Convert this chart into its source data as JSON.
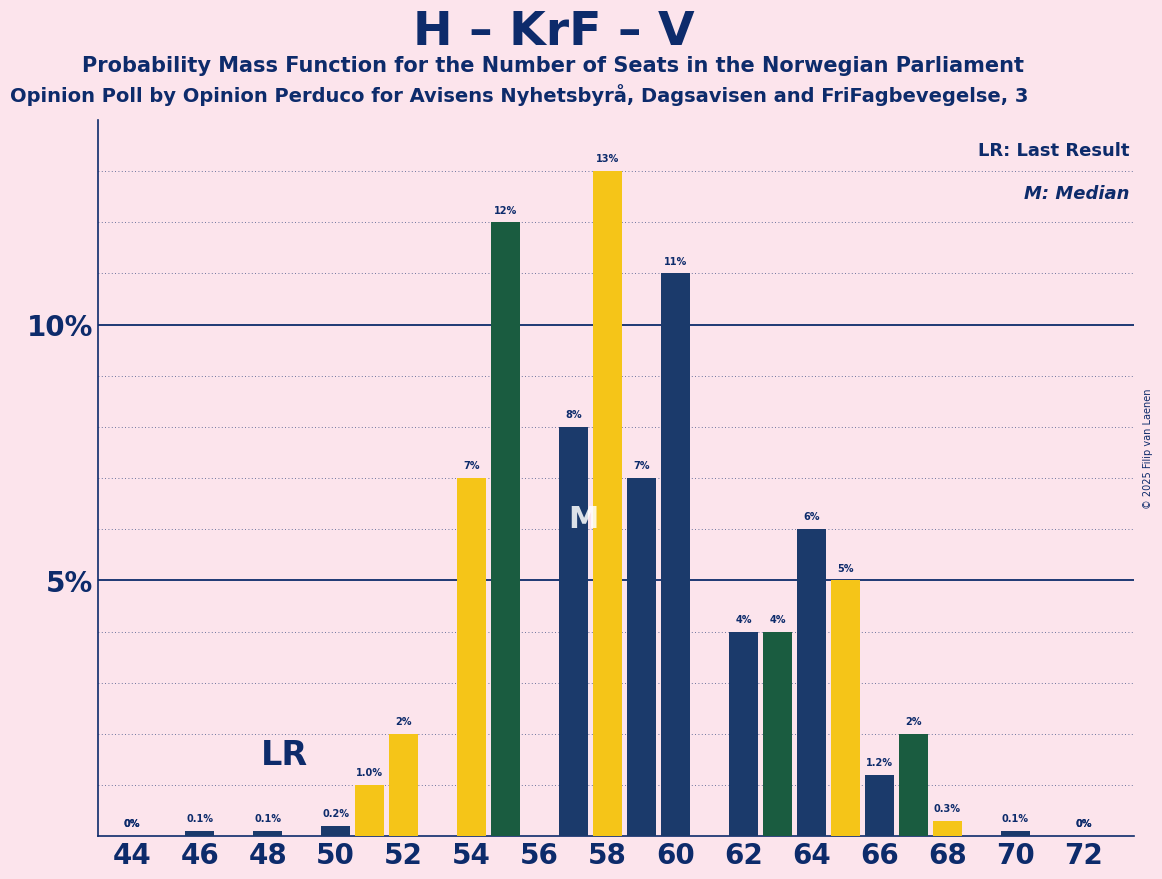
{
  "title": "H – KrF – V",
  "subtitle": "Probability Mass Function for the Number of Seats in the Norwegian Parliament",
  "subtitle2": "Opinion Poll by Opinion Perduco for Avisens Nyhetsbyrå, Dagsavisen and FriFagbevegelse, 3",
  "copyright": "© 2025 Filip van Laenen",
  "legend_lr": "LR: Last Result",
  "legend_m": "M: Median",
  "lr_label": "LR",
  "m_label": "M",
  "background_color": "#fce4ec",
  "bar_color_blue": "#1b3a6b",
  "bar_color_yellow": "#f5c518",
  "bar_color_green": "#1a5c40",
  "title_color": "#0d2b6b",
  "x_ticks": [
    44,
    46,
    48,
    50,
    52,
    54,
    56,
    58,
    60,
    62,
    64,
    66,
    68,
    70,
    72
  ],
  "seats": [
    44,
    45,
    46,
    47,
    48,
    49,
    50,
    51,
    52,
    53,
    54,
    55,
    56,
    57,
    58,
    59,
    60,
    61,
    62,
    63,
    64,
    65,
    66,
    67,
    68,
    69,
    70,
    71,
    72
  ],
  "colors": [
    "blue",
    "blue",
    "blue",
    "blue",
    "blue",
    "blue",
    "blue",
    "yellow",
    "yellow",
    "yellow",
    "yellow",
    "green",
    "green",
    "blue",
    "yellow",
    "blue",
    "blue",
    "blue",
    "blue",
    "green",
    "blue",
    "yellow",
    "blue",
    "green",
    "yellow",
    "green",
    "blue",
    "yellow",
    "blue"
  ],
  "values": [
    0.0,
    0.0,
    0.1,
    0.0,
    0.1,
    0.0,
    0.2,
    1.0,
    2.0,
    0.0,
    7.0,
    12.0,
    0.0,
    8.0,
    13.0,
    7.0,
    11.0,
    0.0,
    4.0,
    4.0,
    6.0,
    5.0,
    1.2,
    2.0,
    0.3,
    0.0,
    0.1,
    0.0,
    0.0
  ],
  "labels": [
    "0%",
    "",
    "0.1%",
    "",
    "0.1%",
    "",
    "0.2%",
    "1.0%",
    "2%",
    "",
    "7%",
    "12%",
    "",
    "8%",
    "13%",
    "7%",
    "11%",
    "",
    "4%",
    "4%",
    "6%",
    "5%",
    "1.2%",
    "2%",
    "0.3%",
    "",
    "0.1%",
    "",
    "0%"
  ],
  "ylim_max": 14.0,
  "bar_width": 0.85,
  "lr_seat": 51,
  "median_seat": 57
}
